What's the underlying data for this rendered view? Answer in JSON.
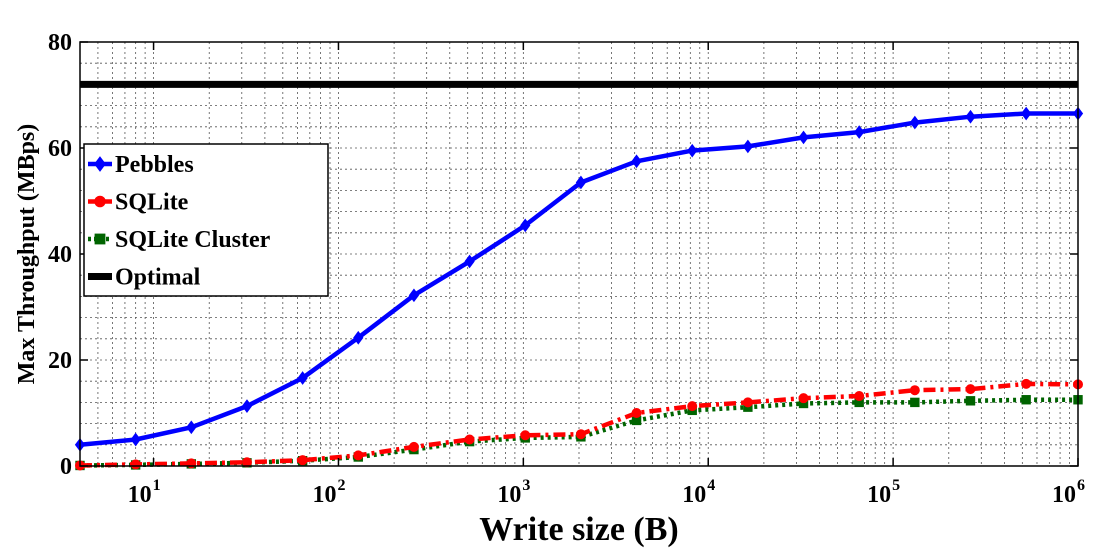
{
  "chart_data": {
    "type": "line",
    "title": "",
    "xlabel": "Write size (B)",
    "ylabel": "Max Throughput (MBps)",
    "x_scale": "log",
    "xlim": [
      4,
      1000000
    ],
    "ylim": [
      0,
      80
    ],
    "x_ticks": [
      "10^1",
      "10^2",
      "10^3",
      "10^4",
      "10^5",
      "10^6"
    ],
    "y_ticks": [
      0,
      20,
      40,
      60,
      80
    ],
    "grid": true,
    "legend_position": "center-left",
    "x": [
      4,
      8,
      16,
      32,
      64,
      128,
      256,
      512,
      1024,
      2048,
      4096,
      8192,
      16384,
      32768,
      65536,
      131072,
      262144,
      524288,
      1000000
    ],
    "series": [
      {
        "name": "Pebbles",
        "color": "#0000ff",
        "marker": "diamond",
        "style": "solid",
        "values": [
          4,
          5,
          7.3,
          11.3,
          16.6,
          24.2,
          32.2,
          38.6,
          45.4,
          53.5,
          57.5,
          59.5,
          60.3,
          62,
          63,
          64.8,
          65.9,
          66.5,
          66.5
        ]
      },
      {
        "name": "SQLite",
        "color": "#ff0000",
        "marker": "circle",
        "style": "dashdot",
        "values": [
          0.1,
          0.3,
          0.5,
          0.7,
          1.1,
          2,
          3.6,
          5,
          5.8,
          6,
          10,
          11.3,
          12,
          12.8,
          13.2,
          14.3,
          14.5,
          15.5,
          15.4
        ]
      },
      {
        "name": "SQLite Cluster",
        "color": "#006400",
        "marker": "square",
        "style": "dotted",
        "values": [
          0.1,
          0.2,
          0.4,
          0.6,
          1,
          1.7,
          3.1,
          4.6,
          5.3,
          5.5,
          8.6,
          10.5,
          11.1,
          11.8,
          12,
          12,
          12.3,
          12.5,
          12.5
        ]
      },
      {
        "name": "Optimal",
        "color": "#000000",
        "marker": "none",
        "style": "solid",
        "values": [
          72,
          72,
          72,
          72,
          72,
          72,
          72,
          72,
          72,
          72,
          72,
          72,
          72,
          72,
          72,
          72,
          72,
          72,
          72
        ]
      }
    ]
  }
}
